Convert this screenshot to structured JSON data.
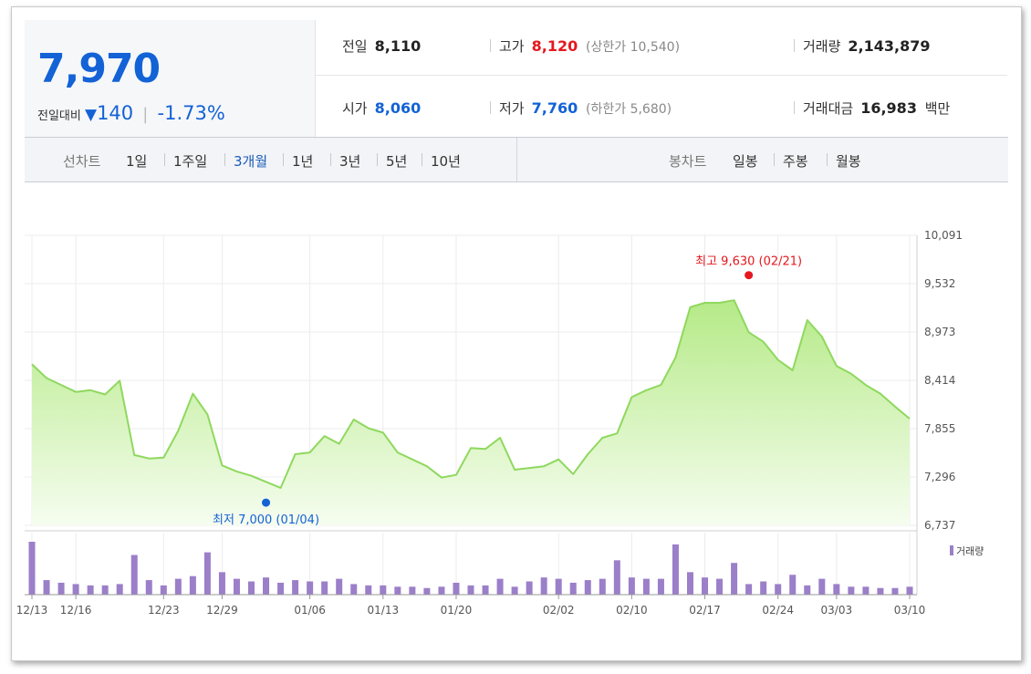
{
  "quote": {
    "price": "7,970",
    "change_label": "전일대비",
    "change_icon": "down-triangle-icon",
    "change_value": "140",
    "change_pct": "-1.73%"
  },
  "stats": {
    "prev_close": {
      "label": "전일",
      "value": "8,110"
    },
    "high": {
      "label": "고가",
      "value": "8,120",
      "sub_label": "(상한가",
      "sub_value": "10,540",
      "sub_close": ")"
    },
    "volume": {
      "label": "거래량",
      "value": "2,143,879"
    },
    "open": {
      "label": "시가",
      "value": "8,060"
    },
    "low": {
      "label": "저가",
      "value": "7,760",
      "sub_label": "(하한가",
      "sub_value": "5,680",
      "sub_close": ")"
    },
    "amount": {
      "label": "거래대금",
      "value": "16,983",
      "unit": "백만"
    }
  },
  "toolbar": {
    "line_label": "선차트",
    "periods": [
      "1일",
      "1주일",
      "3개월",
      "1년",
      "3년",
      "5년",
      "10년"
    ],
    "active_period": "3개월",
    "candle_label": "봉차트",
    "candles": [
      "일봉",
      "주봉",
      "월봉"
    ]
  },
  "colors": {
    "price_blue": "#1362d6",
    "price_red": "#e4181e",
    "line": "#8fd85e",
    "area_top": "#b9ec8f",
    "volume": "#9b7fc9"
  },
  "chart_data": {
    "type": "area",
    "y_ticks": [
      "10,091",
      "9,532",
      "8,973",
      "8,414",
      "7,855",
      "7,296",
      "6,737"
    ],
    "ylim": [
      6737,
      10091
    ],
    "x_ticks": [
      "12/13",
      "12/16",
      "12/23",
      "12/29",
      "01/06",
      "01/13",
      "01/20",
      "02/02",
      "02/10",
      "02/17",
      "02/24",
      "03/03",
      "03/10"
    ],
    "x_tick_index": [
      0,
      3,
      9,
      13,
      19,
      24,
      29,
      36,
      41,
      46,
      51,
      55,
      60
    ],
    "price": [
      8600,
      8440,
      8360,
      8280,
      8300,
      8250,
      8410,
      7550,
      7510,
      7520,
      7830,
      8260,
      8020,
      7430,
      7360,
      7310,
      7240,
      7170,
      7560,
      7580,
      7770,
      7680,
      7960,
      7860,
      7810,
      7580,
      7500,
      7420,
      7290,
      7320,
      7630,
      7620,
      7750,
      7380,
      7400,
      7420,
      7500,
      7330,
      7560,
      7750,
      7800,
      8220,
      8300,
      8360,
      8680,
      9260,
      9310,
      9310,
      9340,
      8970,
      8860,
      8650,
      8530,
      9110,
      8920,
      8580,
      8490,
      8360,
      8260,
      8110,
      7970
    ],
    "volume": [
      40,
      11,
      9,
      8,
      7,
      7,
      8,
      30,
      11,
      7,
      12,
      14,
      32,
      17,
      12,
      10,
      13,
      9,
      11,
      10,
      10,
      12,
      8,
      7,
      7,
      6,
      6,
      5,
      6,
      9,
      7,
      7,
      12,
      6,
      10,
      13,
      12,
      9,
      11,
      12,
      26,
      13,
      12,
      12,
      38,
      17,
      13,
      12,
      24,
      8,
      10,
      8,
      15,
      7,
      12,
      8,
      6,
      6,
      5,
      5,
      6
    ],
    "annotations": {
      "high": {
        "label": "최고",
        "value": "9,630",
        "date": "(02/21)",
        "index": 49,
        "price": 9630
      },
      "low": {
        "label": "최저",
        "value": "7,000",
        "date": "(01/04)",
        "index": 16,
        "price": 7000
      }
    },
    "legend": "거래량",
    "grid": true
  }
}
